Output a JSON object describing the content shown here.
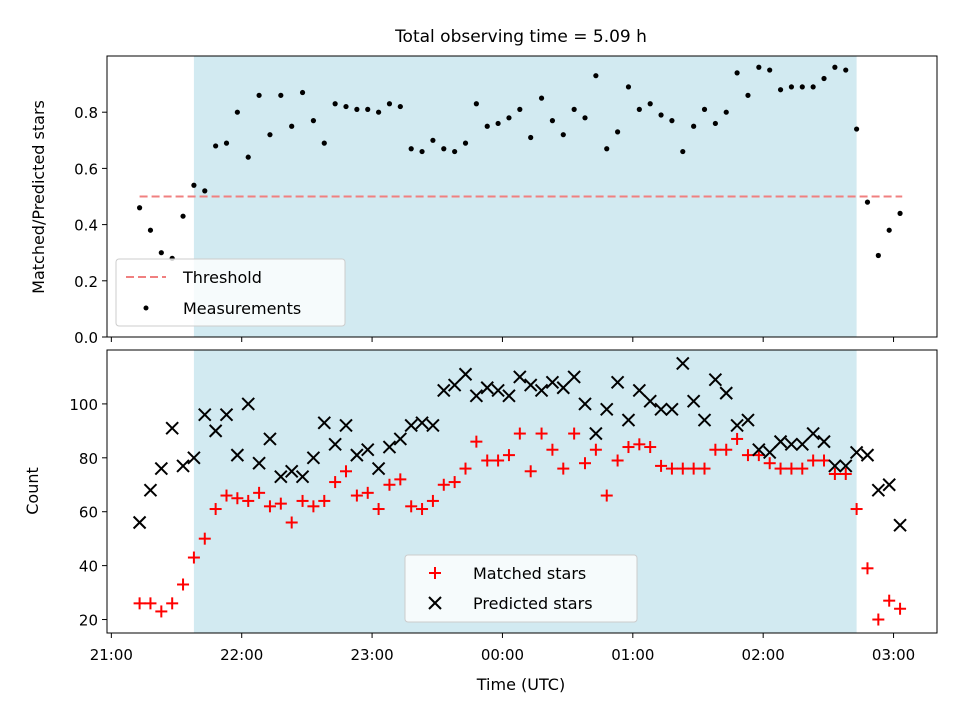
{
  "title": "Total observing time = 5.09 h",
  "colors": {
    "observing_span": "#add8e6",
    "threshold": "#f08080",
    "measurements": "#000000",
    "matched": "#ff0000",
    "predicted": "#000000"
  },
  "chart_data": [
    {
      "type": "scatter",
      "panel": "top",
      "ylabel": "Matched/Predicted stars",
      "xlim": [
        "20:58",
        "03:20"
      ],
      "ylim": [
        0,
        1.0
      ],
      "yticks": [
        "0.0",
        "0.2",
        "0.4",
        "0.6",
        "0.8"
      ],
      "shaded_span": [
        "21:38",
        "02:43"
      ],
      "legend": {
        "position": "lower-left",
        "entries": [
          "Threshold",
          "Measurements"
        ]
      },
      "threshold": {
        "name": "Threshold",
        "y": 0.5,
        "x_range": [
          "21:13",
          "03:04"
        ],
        "style": "dashed"
      },
      "series": [
        {
          "name": "Measurements",
          "x": [
            "21:13",
            "21:18",
            "21:23",
            "21:28",
            "21:33",
            "21:38",
            "21:43",
            "21:48",
            "21:53",
            "21:58",
            "22:03",
            "22:08",
            "22:13",
            "22:18",
            "22:23",
            "22:28",
            "22:33",
            "22:38",
            "22:43",
            "22:48",
            "22:53",
            "22:58",
            "23:03",
            "23:08",
            "23:13",
            "23:18",
            "23:23",
            "23:28",
            "23:33",
            "23:38",
            "23:43",
            "23:48",
            "23:53",
            "23:58",
            "00:03",
            "00:08",
            "00:13",
            "00:18",
            "00:23",
            "00:28",
            "00:33",
            "00:38",
            "00:43",
            "00:48",
            "00:53",
            "00:58",
            "01:03",
            "01:08",
            "01:13",
            "01:18",
            "01:23",
            "01:28",
            "01:33",
            "01:38",
            "01:43",
            "01:48",
            "01:53",
            "01:58",
            "02:03",
            "02:08",
            "02:13",
            "02:18",
            "02:23",
            "02:28",
            "02:33",
            "02:38",
            "02:43",
            "02:48",
            "02:53",
            "02:58",
            "03:03"
          ],
          "y": [
            0.46,
            0.38,
            0.3,
            0.28,
            0.43,
            0.54,
            0.52,
            0.68,
            0.69,
            0.8,
            0.64,
            0.86,
            0.72,
            0.86,
            0.75,
            0.87,
            0.77,
            0.69,
            0.83,
            0.82,
            0.81,
            0.81,
            0.8,
            0.83,
            0.82,
            0.67,
            0.66,
            0.7,
            0.67,
            0.66,
            0.69,
            0.83,
            0.75,
            0.76,
            0.78,
            0.81,
            0.71,
            0.85,
            0.77,
            0.72,
            0.81,
            0.78,
            0.93,
            0.67,
            0.73,
            0.89,
            0.81,
            0.83,
            0.79,
            0.77,
            0.66,
            0.75,
            0.81,
            0.76,
            0.8,
            0.94,
            0.86,
            0.96,
            0.95,
            0.88,
            0.89,
            0.89,
            0.89,
            0.92,
            0.96,
            0.95,
            0.74,
            0.48,
            0.29,
            0.38,
            0.44
          ]
        }
      ]
    },
    {
      "type": "scatter",
      "panel": "bottom",
      "xlabel": "Time (UTC)",
      "ylabel": "Count",
      "xlim": [
        "20:58",
        "03:20"
      ],
      "ylim": [
        15,
        120
      ],
      "xticks": [
        "21:00",
        "22:00",
        "23:00",
        "00:00",
        "01:00",
        "02:00",
        "03:00"
      ],
      "yticks": [
        "20",
        "40",
        "60",
        "80",
        "100"
      ],
      "shaded_span": [
        "21:38",
        "02:43"
      ],
      "legend": {
        "position": "lower-center",
        "entries": [
          "Matched stars",
          "Predicted stars"
        ]
      },
      "series": [
        {
          "name": "Matched stars",
          "marker": "plus",
          "x": [
            "21:13",
            "21:18",
            "21:23",
            "21:28",
            "21:33",
            "21:38",
            "21:43",
            "21:48",
            "21:53",
            "21:58",
            "22:03",
            "22:08",
            "22:13",
            "22:18",
            "22:23",
            "22:28",
            "22:33",
            "22:38",
            "22:43",
            "22:48",
            "22:53",
            "22:58",
            "23:03",
            "23:08",
            "23:13",
            "23:18",
            "23:23",
            "23:28",
            "23:33",
            "23:38",
            "23:43",
            "23:48",
            "23:53",
            "23:58",
            "00:03",
            "00:08",
            "00:13",
            "00:18",
            "00:23",
            "00:28",
            "00:33",
            "00:38",
            "00:43",
            "00:48",
            "00:53",
            "00:58",
            "01:03",
            "01:08",
            "01:13",
            "01:18",
            "01:23",
            "01:28",
            "01:33",
            "01:38",
            "01:43",
            "01:48",
            "01:53",
            "01:58",
            "02:03",
            "02:08",
            "02:13",
            "02:18",
            "02:23",
            "02:28",
            "02:33",
            "02:38",
            "02:43",
            "02:48",
            "02:53",
            "02:58",
            "03:03"
          ],
          "y": [
            26,
            26,
            23,
            26,
            33,
            43,
            50,
            61,
            66,
            65,
            64,
            67,
            62,
            63,
            56,
            64,
            62,
            64,
            71,
            75,
            66,
            67,
            61,
            70,
            72,
            62,
            61,
            64,
            70,
            71,
            76,
            86,
            79,
            79,
            81,
            89,
            75,
            89,
            83,
            76,
            89,
            78,
            83,
            66,
            79,
            84,
            85,
            84,
            77,
            76,
            76,
            76,
            76,
            83,
            83,
            87,
            81,
            81,
            78,
            76,
            76,
            76,
            79,
            79,
            74,
            74,
            61,
            39,
            20,
            27,
            24
          ]
        },
        {
          "name": "Predicted stars",
          "marker": "x",
          "x": [
            "21:13",
            "21:18",
            "21:23",
            "21:28",
            "21:33",
            "21:38",
            "21:43",
            "21:48",
            "21:53",
            "21:58",
            "22:03",
            "22:08",
            "22:13",
            "22:18",
            "22:23",
            "22:28",
            "22:33",
            "22:38",
            "22:43",
            "22:48",
            "22:53",
            "22:58",
            "23:03",
            "23:08",
            "23:13",
            "23:18",
            "23:23",
            "23:28",
            "23:33",
            "23:38",
            "23:43",
            "23:48",
            "23:53",
            "23:58",
            "00:03",
            "00:08",
            "00:13",
            "00:18",
            "00:23",
            "00:28",
            "00:33",
            "00:38",
            "00:43",
            "00:48",
            "00:53",
            "00:58",
            "01:03",
            "01:08",
            "01:13",
            "01:18",
            "01:23",
            "01:28",
            "01:33",
            "01:38",
            "01:43",
            "01:48",
            "01:53",
            "01:58",
            "02:03",
            "02:08",
            "02:13",
            "02:18",
            "02:23",
            "02:28",
            "02:33",
            "02:38",
            "02:43",
            "02:48",
            "02:53",
            "02:58",
            "03:03"
          ],
          "y": [
            56,
            68,
            76,
            91,
            77,
            80,
            96,
            90,
            96,
            81,
            100,
            78,
            87,
            73,
            75,
            73,
            80,
            93,
            85,
            92,
            81,
            83,
            76,
            84,
            87,
            92,
            93,
            92,
            105,
            107,
            111,
            103,
            106,
            105,
            103,
            110,
            107,
            105,
            108,
            106,
            110,
            100,
            89,
            98,
            108,
            94,
            105,
            101,
            98,
            98,
            115,
            101,
            94,
            109,
            104,
            92,
            94,
            83,
            82,
            86,
            85,
            85,
            89,
            86,
            77,
            77,
            82,
            81,
            68,
            70,
            55
          ]
        }
      ]
    }
  ]
}
